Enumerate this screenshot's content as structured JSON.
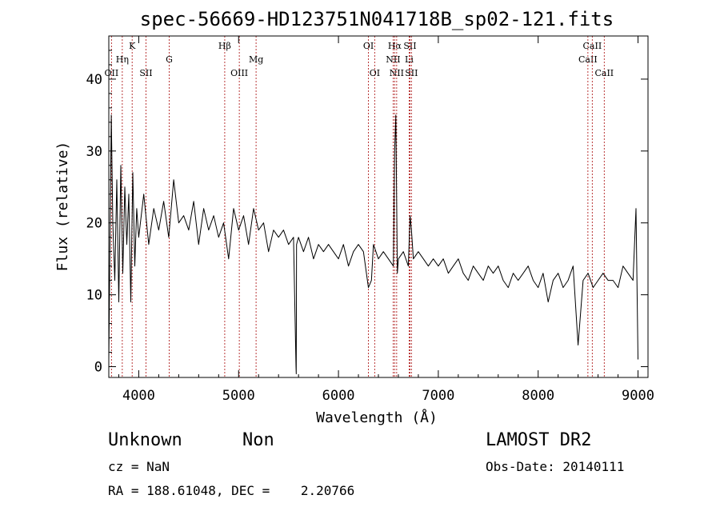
{
  "chart_data": {
    "type": "line",
    "title": "spec-56669-HD123751N041718B_sp02-121.fits",
    "xlabel": "Wavelength (Å)",
    "ylabel": "Flux (relative)",
    "xlim": [
      3700,
      9100
    ],
    "ylim": [
      -1.5,
      46
    ],
    "x_ticks": [
      4000,
      5000,
      6000,
      7000,
      8000,
      9000
    ],
    "y_ticks": [
      0,
      10,
      20,
      30,
      40
    ],
    "grid": false,
    "series": [
      {
        "x": [
          3700,
          3725,
          3740,
          3760,
          3780,
          3800,
          3820,
          3840,
          3860,
          3880,
          3900,
          3920,
          3940,
          3960,
          3980,
          4000,
          4050,
          4100,
          4150,
          4200,
          4250,
          4300,
          4350,
          4400,
          4450,
          4500,
          4550,
          4600,
          4650,
          4700,
          4750,
          4800,
          4850,
          4900,
          4950,
          5000,
          5050,
          5100,
          5150,
          5200,
          5250,
          5300,
          5350,
          5400,
          5450,
          5500,
          5550,
          5575,
          5577,
          5580,
          5600,
          5650,
          5700,
          5750,
          5800,
          5850,
          5900,
          5950,
          6000,
          6050,
          6100,
          6150,
          6200,
          6250,
          6300,
          6330,
          6350,
          6400,
          6450,
          6500,
          6550,
          6563,
          6575,
          6590,
          6600,
          6650,
          6700,
          6717,
          6731,
          6750,
          6800,
          6850,
          6900,
          6950,
          7000,
          7050,
          7100,
          7150,
          7200,
          7250,
          7300,
          7350,
          7400,
          7450,
          7500,
          7550,
          7600,
          7650,
          7700,
          7750,
          7800,
          7850,
          7900,
          7950,
          8000,
          8050,
          8100,
          8150,
          8200,
          8250,
          8300,
          8350,
          8400,
          8450,
          8500,
          8550,
          8600,
          8650,
          8700,
          8750,
          8800,
          8850,
          8900,
          8950,
          8980,
          9000
        ],
        "y": [
          1,
          35,
          20,
          12,
          26,
          9,
          28,
          13,
          25,
          17,
          24,
          9,
          27,
          14,
          22,
          18,
          24,
          17,
          22,
          19,
          23,
          18,
          26,
          20,
          21,
          19,
          23,
          17,
          22,
          19,
          21,
          18,
          20,
          15,
          22,
          19,
          21,
          17,
          22,
          19,
          20,
          16,
          19,
          18,
          19,
          17,
          18,
          0,
          -1,
          17,
          18,
          16,
          18,
          15,
          17,
          16,
          17,
          16,
          15,
          17,
          14,
          16,
          17,
          16,
          11,
          12,
          17,
          15,
          16,
          15,
          14,
          30,
          35,
          13,
          15,
          16,
          14,
          21,
          19,
          15,
          16,
          15,
          14,
          15,
          14,
          15,
          13,
          14,
          15,
          13,
          12,
          14,
          13,
          12,
          14,
          13,
          14,
          12,
          11,
          13,
          12,
          13,
          14,
          12,
          11,
          13,
          9,
          12,
          13,
          11,
          12,
          14,
          3,
          12,
          13,
          11,
          12,
          13,
          12,
          12,
          11,
          14,
          13,
          12,
          22,
          1
        ]
      }
    ],
    "lines": [
      {
        "name": "OII",
        "x": 3727,
        "row": 3
      },
      {
        "name": "Hη",
        "x": 3835,
        "row": 2
      },
      {
        "name": "K",
        "x": 3934,
        "row": 1
      },
      {
        "name": "SII",
        "x": 4072,
        "row": 3
      },
      {
        "name": "G",
        "x": 4305,
        "row": 2
      },
      {
        "name": "Hβ",
        "x": 4861,
        "row": 1
      },
      {
        "name": "OIII",
        "x": 5007,
        "row": 3
      },
      {
        "name": "Mg",
        "x": 5175,
        "row": 2
      },
      {
        "name": "OI",
        "x": 6300,
        "row": 1
      },
      {
        "name": "OI",
        "x": 6363,
        "row": 3
      },
      {
        "name": "Hα",
        "x": 6563,
        "row": 1
      },
      {
        "name": "NII",
        "x": 6548,
        "row": 2
      },
      {
        "name": "NII",
        "x": 6583,
        "row": 3
      },
      {
        "name": "SII",
        "x": 6716,
        "row": 1
      },
      {
        "name": "Li",
        "x": 6708,
        "row": 2
      },
      {
        "name": "SII",
        "x": 6731,
        "row": 3
      },
      {
        "name": "CaII",
        "x": 8498,
        "row": 2
      },
      {
        "name": "CaII",
        "x": 8542,
        "row": 1
      },
      {
        "name": "CaII",
        "x": 8662,
        "row": 3
      }
    ]
  },
  "info": {
    "class": "Unknown",
    "subclass": "Non",
    "survey": "LAMOST DR2",
    "cz": "cz = NaN",
    "obs_date": "Obs-Date: 20140111",
    "coords": "RA = 188.61048, DEC =    2.20766"
  }
}
